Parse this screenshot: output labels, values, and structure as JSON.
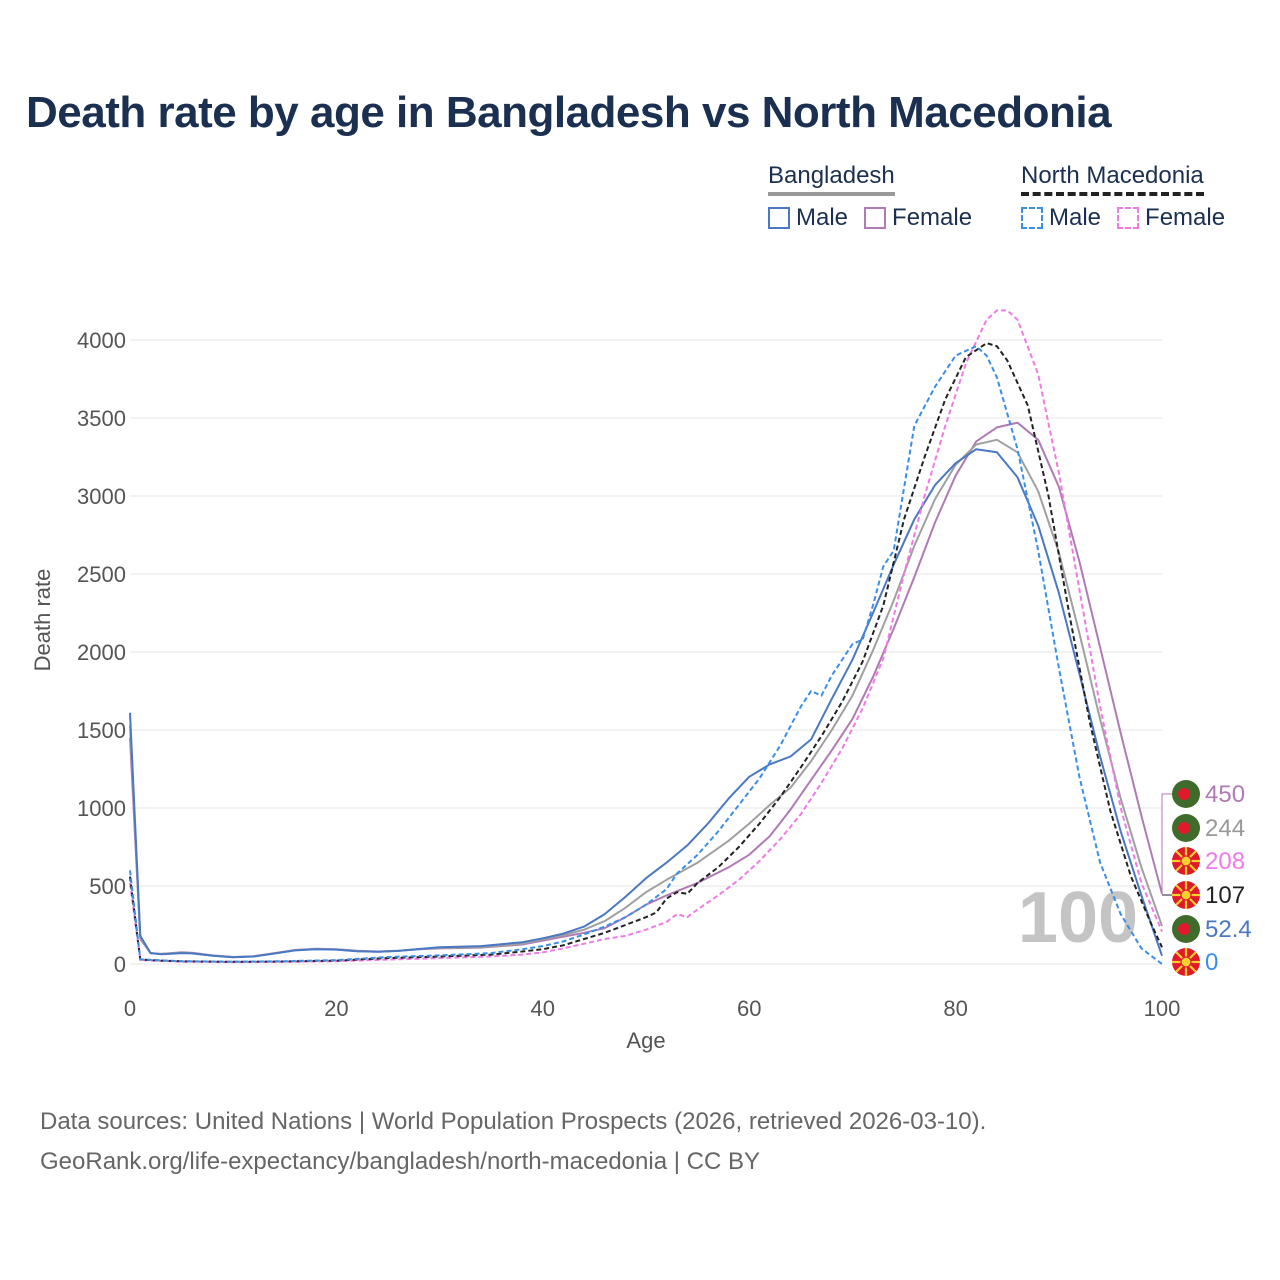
{
  "title": "Death rate by age in Bangladesh vs North Macedonia",
  "legend": {
    "groups": [
      {
        "name": "Bangladesh",
        "items": [
          {
            "label": "Male",
            "color": "#4a78c2",
            "style": "solid"
          },
          {
            "label": "Female",
            "color": "#b07ab5",
            "style": "solid"
          }
        ]
      },
      {
        "name": "North Macedonia",
        "items": [
          {
            "label": "Male",
            "color": "#3b8ee8",
            "style": "dashed"
          },
          {
            "label": "Female",
            "color": "#f07ae8",
            "style": "dashed"
          }
        ]
      }
    ]
  },
  "age_marker": "100",
  "footer": {
    "source": "Data sources: United Nations | World Population Prospects (2026, retrieved 2026-03-10).",
    "link": "GeoRank.org/life-expectancy/bangladesh/north-macedonia | CC BY"
  },
  "chart_data": {
    "type": "line",
    "xlabel": "Age",
    "ylabel": "Death rate",
    "xlim": [
      0,
      100
    ],
    "ylim": [
      0,
      4000
    ],
    "xticks": [
      "0",
      "20",
      "40",
      "60",
      "80",
      "100"
    ],
    "yticks": [
      "0",
      "500",
      "1000",
      "1500",
      "2000",
      "2500",
      "3000",
      "3500",
      "4000"
    ],
    "grid": true,
    "series": [
      {
        "name": "Bangladesh Female",
        "color": "#b07ab5",
        "style": "solid",
        "width": 2,
        "points": [
          [
            0,
            1450
          ],
          [
            1,
            160
          ],
          [
            2,
            70
          ],
          [
            3,
            65
          ],
          [
            4,
            70
          ],
          [
            5,
            75
          ],
          [
            6,
            72
          ],
          [
            8,
            55
          ],
          [
            10,
            45
          ],
          [
            12,
            50
          ],
          [
            14,
            70
          ],
          [
            16,
            90
          ],
          [
            18,
            98
          ],
          [
            20,
            95
          ],
          [
            22,
            85
          ],
          [
            24,
            80
          ],
          [
            26,
            85
          ],
          [
            28,
            95
          ],
          [
            30,
            100
          ],
          [
            34,
            105
          ],
          [
            38,
            125
          ],
          [
            40,
            150
          ],
          [
            42,
            175
          ],
          [
            44,
            200
          ],
          [
            46,
            230
          ],
          [
            48,
            300
          ],
          [
            50,
            380
          ],
          [
            52,
            440
          ],
          [
            55,
            520
          ],
          [
            58,
            620
          ],
          [
            60,
            700
          ],
          [
            62,
            820
          ],
          [
            64,
            990
          ],
          [
            66,
            1180
          ],
          [
            68,
            1370
          ],
          [
            70,
            1570
          ],
          [
            72,
            1840
          ],
          [
            74,
            2150
          ],
          [
            76,
            2480
          ],
          [
            78,
            2830
          ],
          [
            80,
            3130
          ],
          [
            82,
            3350
          ],
          [
            84,
            3440
          ],
          [
            86,
            3470
          ],
          [
            88,
            3360
          ],
          [
            90,
            3060
          ],
          [
            92,
            2580
          ],
          [
            94,
            2030
          ],
          [
            96,
            1480
          ],
          [
            98,
            950
          ],
          [
            100,
            450
          ]
        ]
      },
      {
        "name": "Bangladesh Total",
        "color": "#a0a0a0",
        "style": "solid",
        "width": 2,
        "points": [
          [
            0,
            1530
          ],
          [
            1,
            170
          ],
          [
            2,
            70
          ],
          [
            3,
            64
          ],
          [
            4,
            68
          ],
          [
            5,
            72
          ],
          [
            6,
            70
          ],
          [
            8,
            54
          ],
          [
            10,
            44
          ],
          [
            12,
            49
          ],
          [
            14,
            68
          ],
          [
            16,
            88
          ],
          [
            18,
            96
          ],
          [
            20,
            93
          ],
          [
            22,
            83
          ],
          [
            24,
            78
          ],
          [
            26,
            84
          ],
          [
            28,
            94
          ],
          [
            30,
            103
          ],
          [
            34,
            108
          ],
          [
            38,
            130
          ],
          [
            40,
            158
          ],
          [
            42,
            185
          ],
          [
            44,
            220
          ],
          [
            46,
            275
          ],
          [
            48,
            360
          ],
          [
            50,
            460
          ],
          [
            52,
            540
          ],
          [
            55,
            650
          ],
          [
            58,
            790
          ],
          [
            60,
            900
          ],
          [
            62,
            1020
          ],
          [
            64,
            1130
          ],
          [
            66,
            1300
          ],
          [
            68,
            1500
          ],
          [
            70,
            1720
          ],
          [
            72,
            2010
          ],
          [
            74,
            2330
          ],
          [
            76,
            2680
          ],
          [
            78,
            2980
          ],
          [
            80,
            3200
          ],
          [
            82,
            3330
          ],
          [
            84,
            3360
          ],
          [
            86,
            3280
          ],
          [
            88,
            3030
          ],
          [
            90,
            2640
          ],
          [
            92,
            2120
          ],
          [
            94,
            1570
          ],
          [
            96,
            1060
          ],
          [
            98,
            620
          ],
          [
            100,
            244
          ]
        ]
      },
      {
        "name": "Bangladesh Male",
        "color": "#4a78c2",
        "style": "solid",
        "width": 2,
        "points": [
          [
            0,
            1610
          ],
          [
            1,
            180
          ],
          [
            2,
            70
          ],
          [
            3,
            62
          ],
          [
            4,
            66
          ],
          [
            5,
            70
          ],
          [
            6,
            68
          ],
          [
            8,
            53
          ],
          [
            10,
            43
          ],
          [
            12,
            48
          ],
          [
            14,
            67
          ],
          [
            16,
            87
          ],
          [
            18,
            95
          ],
          [
            20,
            92
          ],
          [
            22,
            82
          ],
          [
            24,
            78
          ],
          [
            26,
            84
          ],
          [
            28,
            96
          ],
          [
            30,
            108
          ],
          [
            34,
            115
          ],
          [
            38,
            140
          ],
          [
            40,
            165
          ],
          [
            42,
            195
          ],
          [
            44,
            240
          ],
          [
            46,
            320
          ],
          [
            48,
            430
          ],
          [
            50,
            550
          ],
          [
            52,
            650
          ],
          [
            54,
            760
          ],
          [
            56,
            900
          ],
          [
            58,
            1060
          ],
          [
            60,
            1200
          ],
          [
            62,
            1280
          ],
          [
            64,
            1330
          ],
          [
            66,
            1440
          ],
          [
            68,
            1700
          ],
          [
            70,
            1950
          ],
          [
            72,
            2250
          ],
          [
            74,
            2560
          ],
          [
            76,
            2850
          ],
          [
            78,
            3070
          ],
          [
            80,
            3210
          ],
          [
            82,
            3300
          ],
          [
            84,
            3280
          ],
          [
            86,
            3120
          ],
          [
            88,
            2810
          ],
          [
            90,
            2380
          ],
          [
            92,
            1860
          ],
          [
            94,
            1330
          ],
          [
            96,
            850
          ],
          [
            98,
            440
          ],
          [
            100,
            52.4
          ]
        ]
      },
      {
        "name": "North Macedonia Female",
        "color": "#f07ae8",
        "style": "dashed",
        "width": 2,
        "points": [
          [
            0,
            520
          ],
          [
            1,
            25
          ],
          [
            3,
            20
          ],
          [
            5,
            15
          ],
          [
            10,
            12
          ],
          [
            15,
            14
          ],
          [
            20,
            18
          ],
          [
            25,
            28
          ],
          [
            30,
            38
          ],
          [
            35,
            48
          ],
          [
            38,
            60
          ],
          [
            40,
            75
          ],
          [
            42,
            100
          ],
          [
            44,
            130
          ],
          [
            46,
            160
          ],
          [
            48,
            180
          ],
          [
            50,
            220
          ],
          [
            52,
            270
          ],
          [
            53,
            320
          ],
          [
            54,
            300
          ],
          [
            55,
            350
          ],
          [
            57,
            440
          ],
          [
            59,
            540
          ],
          [
            61,
            660
          ],
          [
            63,
            800
          ],
          [
            65,
            960
          ],
          [
            67,
            1160
          ],
          [
            69,
            1380
          ],
          [
            71,
            1640
          ],
          [
            73,
            1960
          ],
          [
            75,
            2500
          ],
          [
            77,
            3000
          ],
          [
            79,
            3450
          ],
          [
            81,
            3850
          ],
          [
            83,
            4130
          ],
          [
            84,
            4190
          ],
          [
            85,
            4190
          ],
          [
            86,
            4130
          ],
          [
            88,
            3780
          ],
          [
            90,
            3150
          ],
          [
            92,
            2400
          ],
          [
            94,
            1650
          ],
          [
            96,
            1000
          ],
          [
            98,
            520
          ],
          [
            100,
            208
          ]
        ]
      },
      {
        "name": "North Macedonia Total",
        "color": "#222222",
        "style": "dashed",
        "width": 2,
        "points": [
          [
            0,
            560
          ],
          [
            1,
            28
          ],
          [
            3,
            22
          ],
          [
            5,
            17
          ],
          [
            10,
            14
          ],
          [
            15,
            16
          ],
          [
            20,
            22
          ],
          [
            25,
            38
          ],
          [
            30,
            48
          ],
          [
            35,
            60
          ],
          [
            38,
            80
          ],
          [
            40,
            95
          ],
          [
            42,
            120
          ],
          [
            44,
            160
          ],
          [
            46,
            200
          ],
          [
            48,
            250
          ],
          [
            50,
            300
          ],
          [
            51,
            330
          ],
          [
            52,
            420
          ],
          [
            53,
            460
          ],
          [
            54,
            450
          ],
          [
            55,
            520
          ],
          [
            57,
            620
          ],
          [
            59,
            750
          ],
          [
            61,
            900
          ],
          [
            63,
            1070
          ],
          [
            65,
            1260
          ],
          [
            67,
            1460
          ],
          [
            69,
            1680
          ],
          [
            71,
            1940
          ],
          [
            73,
            2300
          ],
          [
            75,
            2850
          ],
          [
            77,
            3250
          ],
          [
            79,
            3620
          ],
          [
            81,
            3890
          ],
          [
            83,
            3980
          ],
          [
            84,
            3960
          ],
          [
            85,
            3870
          ],
          [
            87,
            3580
          ],
          [
            89,
            3000
          ],
          [
            91,
            2250
          ],
          [
            93,
            1550
          ],
          [
            95,
            980
          ],
          [
            97,
            560
          ],
          [
            99,
            250
          ],
          [
            100,
            107
          ]
        ]
      },
      {
        "name": "North Macedonia Male",
        "color": "#3b8ee8",
        "style": "dashed",
        "width": 2,
        "points": [
          [
            0,
            600
          ],
          [
            1,
            30
          ],
          [
            3,
            24
          ],
          [
            5,
            18
          ],
          [
            10,
            15
          ],
          [
            15,
            18
          ],
          [
            20,
            25
          ],
          [
            25,
            45
          ],
          [
            30,
            55
          ],
          [
            35,
            70
          ],
          [
            38,
            95
          ],
          [
            40,
            115
          ],
          [
            42,
            145
          ],
          [
            44,
            190
          ],
          [
            46,
            240
          ],
          [
            48,
            300
          ],
          [
            50,
            380
          ],
          [
            52,
            480
          ],
          [
            53,
            580
          ],
          [
            55,
            700
          ],
          [
            57,
            850
          ],
          [
            59,
            1020
          ],
          [
            61,
            1190
          ],
          [
            63,
            1400
          ],
          [
            65,
            1650
          ],
          [
            66,
            1750
          ],
          [
            67,
            1720
          ],
          [
            68,
            1850
          ],
          [
            70,
            2050
          ],
          [
            71,
            2080
          ],
          [
            72,
            2300
          ],
          [
            73,
            2550
          ],
          [
            74,
            2650
          ],
          [
            75,
            3050
          ],
          [
            76,
            3450
          ],
          [
            78,
            3700
          ],
          [
            80,
            3900
          ],
          [
            82,
            3960
          ],
          [
            83,
            3900
          ],
          [
            84,
            3760
          ],
          [
            86,
            3300
          ],
          [
            88,
            2650
          ],
          [
            90,
            1900
          ],
          [
            92,
            1200
          ],
          [
            94,
            650
          ],
          [
            96,
            320
          ],
          [
            98,
            100
          ],
          [
            100,
            0
          ]
        ]
      }
    ],
    "end_labels": [
      {
        "value": "450",
        "country": "Bangladesh",
        "color": "#b07ab5"
      },
      {
        "value": "244",
        "country": "Bangladesh",
        "color": "#999999"
      },
      {
        "value": "208",
        "country": "North Macedonia",
        "color": "#f07ae8"
      },
      {
        "value": "107",
        "country": "North Macedonia",
        "color": "#222222"
      },
      {
        "value": "52.4",
        "country": "Bangladesh",
        "color": "#4a78c2"
      },
      {
        "value": "0",
        "country": "North Macedonia",
        "color": "#3b8ee8"
      }
    ]
  }
}
